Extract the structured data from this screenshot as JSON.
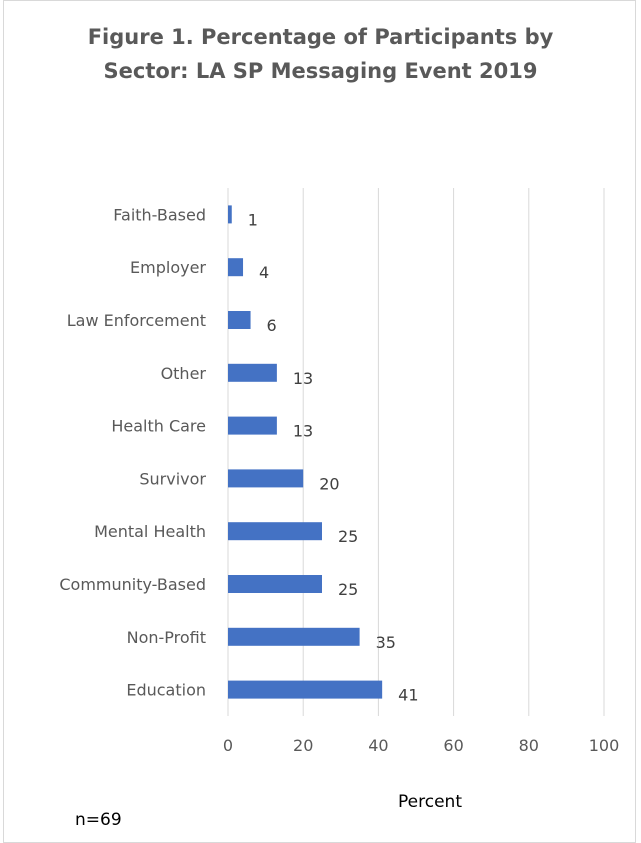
{
  "chart_data": {
    "type": "bar",
    "orientation": "horizontal",
    "title_lines": [
      "Figure 1. Percentage of Participants by",
      "Sector:  LA SP Messaging Event 2019"
    ],
    "categories": [
      "Faith-Based",
      "Employer",
      "Law Enforcement",
      "Other",
      "Health Care",
      "Survivor",
      "Mental Health",
      "Community-Based",
      "Non-Profit",
      "Education"
    ],
    "values": [
      1,
      4,
      6,
      13,
      13,
      20,
      25,
      25,
      35,
      41
    ],
    "xlabel": "Percent",
    "xlim": [
      0,
      100
    ],
    "xticks": [
      0,
      20,
      40,
      60,
      80,
      100
    ],
    "grid": "vertical",
    "bar_color": "#4472c4",
    "data_labels": true
  },
  "note": "n=69"
}
